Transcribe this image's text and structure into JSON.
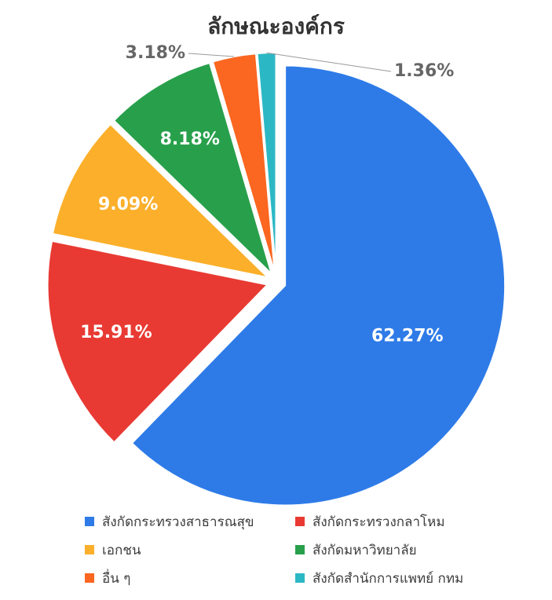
{
  "chart_data": {
    "type": "pie",
    "title": "ลักษณะองค์กร",
    "slices": [
      {
        "label": "สังกัดกระทรวงสาธารณสุข",
        "value": 62.27,
        "value_label": "62.27%",
        "color": "#2E7BE8"
      },
      {
        "label": "สังกัดกระทรวงกลาโหม",
        "value": 15.91,
        "value_label": "15.91%",
        "color": "#E83A33"
      },
      {
        "label": "เอกชน",
        "value": 9.09,
        "value_label": "9.09%",
        "color": "#FBAF2A"
      },
      {
        "label": "สังกัดมหาวิทยาลัย",
        "value": 8.18,
        "value_label": "8.18%",
        "color": "#28A04B"
      },
      {
        "label": "อื่น ๆ",
        "value": 3.18,
        "value_label": "3.18%",
        "color": "#FB6620"
      },
      {
        "label": "สังกัดสำนักการแพทย์ กทม",
        "value": 1.36,
        "value_label": "1.36%",
        "color": "#2BB8C4"
      }
    ],
    "legend_position": "bottom"
  }
}
